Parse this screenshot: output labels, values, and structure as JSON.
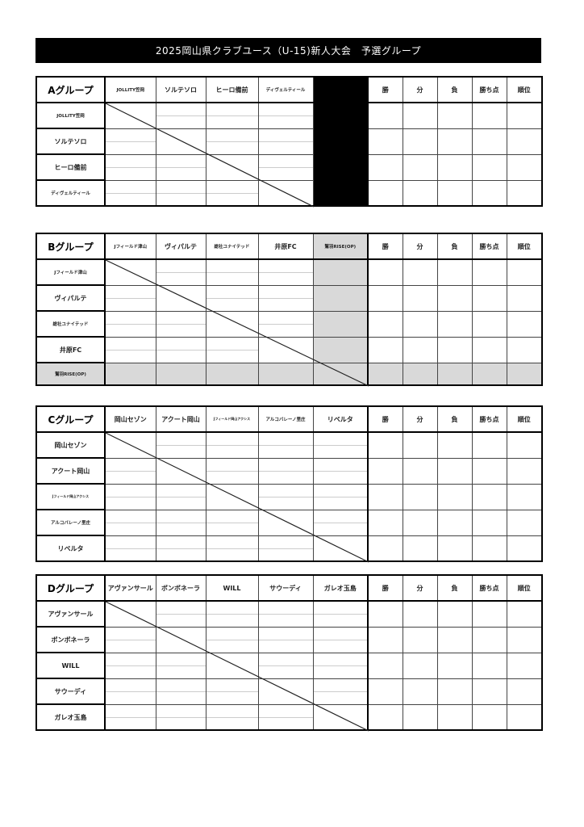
{
  "title": "2025岡山県クラブユース（U-15)新人大会　予選グループ",
  "stat_headers": [
    "勝",
    "分",
    "負",
    "勝ち点",
    "順位"
  ],
  "groups": [
    {
      "name": "Aグループ",
      "teams": [
        "JOLLITY笠岡",
        "ソルテソロ",
        "ヒーロ備前",
        "ディヴェルティール"
      ],
      "extra_column": "blacked-out"
    },
    {
      "name": "Bグループ",
      "teams": [
        "Jフィールド津山",
        "ヴィパルテ",
        "総社ユナイテッド",
        "井原FC",
        "鷲羽RISE(OP)"
      ],
      "open_entry": "鷲羽RISE(OP)"
    },
    {
      "name": "Cグループ",
      "teams": [
        "岡山セゾン",
        "アクート岡山",
        "Jフィールド岡山アクシス",
        "アルコバレーノ里庄",
        "リベルタ"
      ]
    },
    {
      "name": "Dグループ",
      "teams": [
        "アヴァンサール",
        "ボンボネーラ",
        "WILL",
        "サウーディ",
        "ガレオ玉島"
      ]
    }
  ],
  "colors": {
    "title_bg": "#000000",
    "op_shade": "#d9d9d9"
  }
}
